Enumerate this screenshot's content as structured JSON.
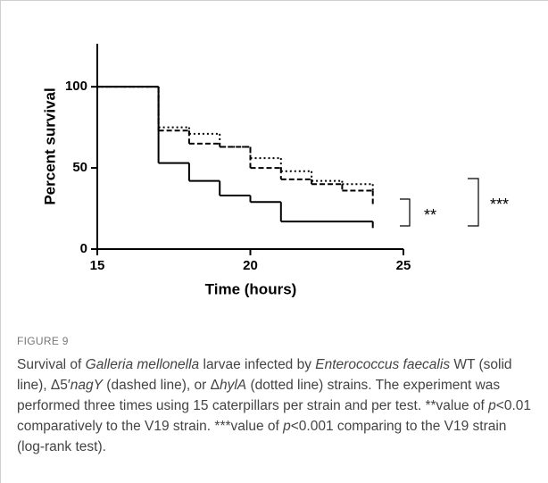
{
  "chart_data": {
    "type": "step",
    "xlabel": "Time (hours)",
    "ylabel": "Percent survival",
    "xlim": [
      15,
      25
    ],
    "xticks": [
      15,
      20,
      25
    ],
    "ylim": [
      0,
      110
    ],
    "yticks": [
      0,
      50,
      100
    ],
    "series": [
      {
        "color": "#000000",
        "linestyle": "solid",
        "x": [
          15,
          17,
          18,
          19,
          20,
          21,
          24
        ],
        "values": [
          100,
          53,
          42,
          33,
          29,
          17,
          13
        ]
      },
      {
        "color": "#000000",
        "linestyle": "dashed",
        "x": [
          15,
          17,
          18,
          19,
          20,
          21,
          22,
          23,
          24
        ],
        "values": [
          100,
          73,
          65,
          63,
          50,
          43,
          40,
          36,
          27
        ]
      },
      {
        "color": "#000000",
        "linestyle": "dotted",
        "x": [
          15,
          17,
          18,
          19,
          20,
          21,
          22,
          23,
          24
        ],
        "values": [
          100,
          75,
          71,
          63,
          56,
          48,
          42,
          40,
          35
        ]
      }
    ],
    "annotations": [
      "**",
      "***"
    ]
  },
  "figure_label": "FIGURE 9",
  "caption": [
    {
      "text": "Survival of ",
      "italic": false
    },
    {
      "text": "Galleria mellonella",
      "italic": true
    },
    {
      "text": " larvae infected by ",
      "italic": false
    },
    {
      "text": "Enterococcus faecalis",
      "italic": true
    },
    {
      "text": " WT (solid line), Δ5′",
      "italic": false
    },
    {
      "text": "nagY",
      "italic": true
    },
    {
      "text": " (dashed line), or Δ",
      "italic": false
    },
    {
      "text": "hylA",
      "italic": true
    },
    {
      "text": " (dotted line) strains. The experiment was performed three times using 15 caterpillars per strain and per test. **value of ",
      "italic": false
    },
    {
      "text": "p",
      "italic": true
    },
    {
      "text": "<0.01 comparatively to the V19 strain. ***value of ",
      "italic": false
    },
    {
      "text": "p",
      "italic": true
    },
    {
      "text": "<0.001 comparing to the V19 strain (log-rank test).",
      "italic": false
    }
  ]
}
